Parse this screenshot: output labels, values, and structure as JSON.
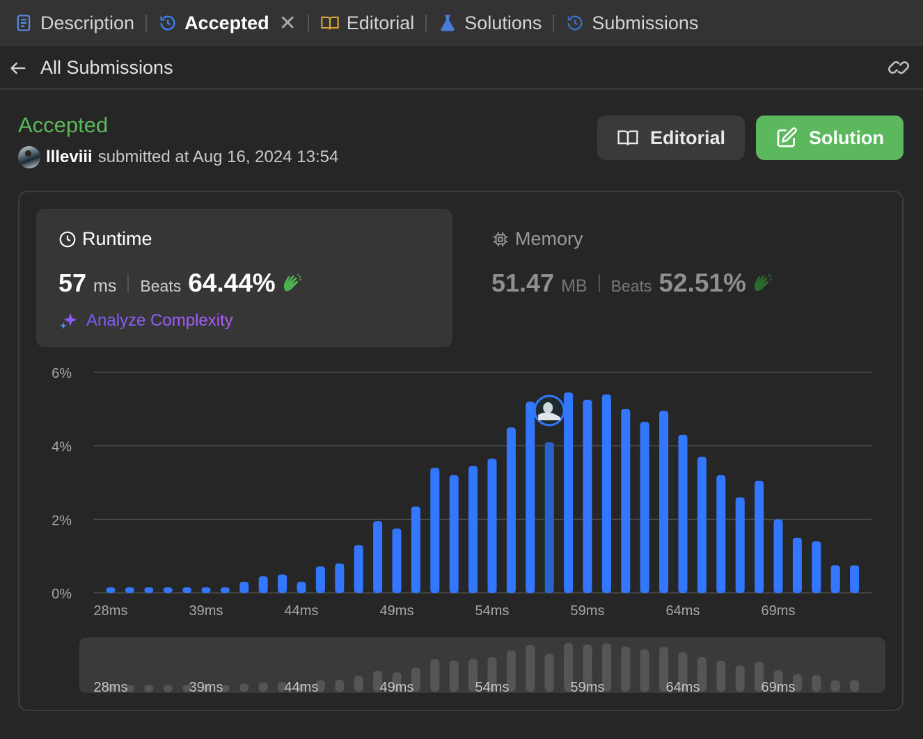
{
  "tabs": [
    {
      "label": "Description",
      "icon": "document-icon",
      "active": false
    },
    {
      "label": "Accepted",
      "icon": "history-icon",
      "active": true,
      "closable": true
    },
    {
      "label": "Editorial",
      "icon": "book-icon",
      "active": false
    },
    {
      "label": "Solutions",
      "icon": "flask-icon",
      "active": false
    },
    {
      "label": "Submissions",
      "icon": "history-icon",
      "active": false
    }
  ],
  "subheader": {
    "title": "All Submissions"
  },
  "submission": {
    "status": "Accepted",
    "username": "llleviii",
    "submitted_text": "submitted at Aug 16, 2024 13:54"
  },
  "buttons": {
    "editorial": "Editorial",
    "solution": "Solution"
  },
  "runtime": {
    "title": "Runtime",
    "value": "57",
    "unit": "ms",
    "beats_label": "Beats",
    "beats_value": "64.44%",
    "analyze_label": "Analyze Complexity"
  },
  "memory": {
    "title": "Memory",
    "value": "51.47",
    "unit": "MB",
    "beats_label": "Beats",
    "beats_value": "52.51%"
  },
  "colors": {
    "accent_green": "#5cb85c",
    "bar_blue": "#3377ff",
    "bar_highlight": "#2a62cc",
    "analyze_purple": "#8a5cff"
  },
  "chart_data": {
    "type": "bar",
    "ylabel_ticks": [
      "0%",
      "2%",
      "4%",
      "6%"
    ],
    "ylim": [
      0,
      6
    ],
    "grid": true,
    "x_tick_labels": [
      "28ms",
      "39ms",
      "44ms",
      "49ms",
      "54ms",
      "59ms",
      "64ms",
      "69ms"
    ],
    "values": [
      0.15,
      0.15,
      0.15,
      0.15,
      0.15,
      0.15,
      0.15,
      0.3,
      0.45,
      0.5,
      0.3,
      0.72,
      0.8,
      1.3,
      1.95,
      1.75,
      2.35,
      3.4,
      3.2,
      3.45,
      3.65,
      4.5,
      5.2,
      4.1,
      5.45,
      5.25,
      5.4,
      5.0,
      4.65,
      4.95,
      4.3,
      3.7,
      3.2,
      2.6,
      3.05,
      2.0,
      1.5,
      1.4,
      0.75,
      0.75
    ],
    "highlighted_index": 23,
    "highlight_label": "57ms"
  }
}
